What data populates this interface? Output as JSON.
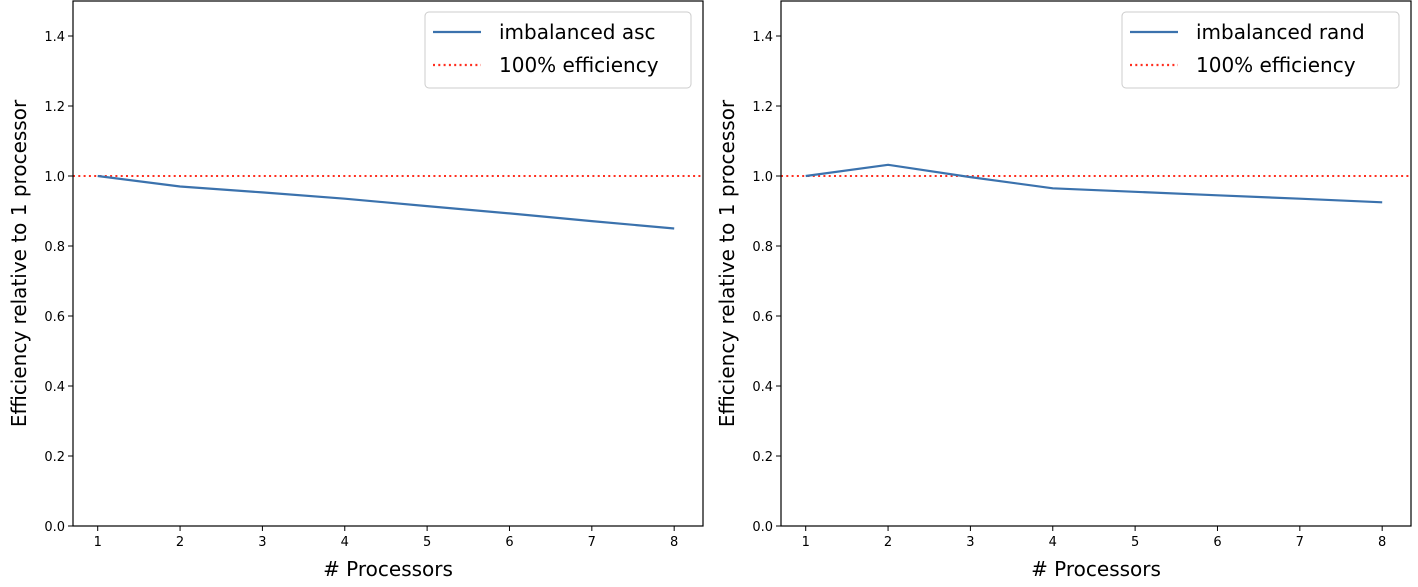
{
  "chart_data": [
    {
      "type": "line",
      "title": "",
      "xlabel": "# Processors",
      "ylabel": "Efficiency relative to 1 processor",
      "xlim": [
        0.7,
        8.35
      ],
      "ylim": [
        0,
        1.5
      ],
      "x_ticks": [
        1,
        2,
        3,
        4,
        5,
        6,
        7,
        8
      ],
      "y_ticks": [
        0.0,
        0.2,
        0.4,
        0.6,
        0.8,
        1.0,
        1.2,
        1.4
      ],
      "y_tick_labels": [
        "0.0",
        "0.2",
        "0.4",
        "0.6",
        "0.8",
        "1.0",
        "1.2",
        "1.4"
      ],
      "legend_position": "top-right",
      "grid": false,
      "series": [
        {
          "name": "imbalanced asc",
          "color": "#3b72ad",
          "style": "solid",
          "x": [
            1,
            2,
            3,
            4,
            5,
            6,
            7,
            8
          ],
          "y": [
            1.0,
            0.97,
            0.953,
            0.935,
            0.914,
            0.893,
            0.871,
            0.85
          ]
        }
      ],
      "reference_lines": [
        {
          "name": "100% efficiency",
          "y": 1.0,
          "color": "#ff2e1f",
          "style": "dotted"
        }
      ]
    },
    {
      "type": "line",
      "title": "",
      "xlabel": "# Processors",
      "ylabel": "Efficiency relative to 1 processor",
      "xlim": [
        0.7,
        8.35
      ],
      "ylim": [
        0,
        1.5
      ],
      "x_ticks": [
        1,
        2,
        3,
        4,
        5,
        6,
        7,
        8
      ],
      "y_ticks": [
        0.0,
        0.2,
        0.4,
        0.6,
        0.8,
        1.0,
        1.2,
        1.4
      ],
      "y_tick_labels": [
        "0.0",
        "0.2",
        "0.4",
        "0.6",
        "0.8",
        "1.0",
        "1.2",
        "1.4"
      ],
      "legend_position": "top-right",
      "grid": false,
      "series": [
        {
          "name": "imbalanced rand",
          "color": "#3b72ad",
          "style": "solid",
          "x": [
            1,
            2,
            3,
            4,
            5,
            6,
            7,
            8
          ],
          "y": [
            1.0,
            1.032,
            0.997,
            0.965,
            0.955,
            0.945,
            0.935,
            0.925
          ]
        }
      ],
      "reference_lines": [
        {
          "name": "100% efficiency",
          "y": 1.0,
          "color": "#ff2e1f",
          "style": "dotted"
        }
      ]
    }
  ]
}
